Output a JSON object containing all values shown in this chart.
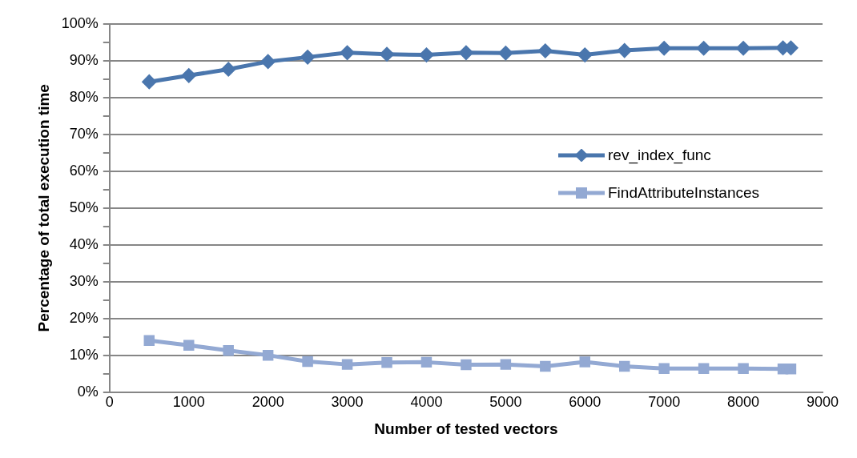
{
  "chart_data": {
    "type": "line",
    "xlabel": "Number of tested vectors",
    "ylabel": "Percentage of total execution time",
    "x": [
      500,
      1000,
      1500,
      2000,
      2500,
      3000,
      3500,
      4000,
      4500,
      5000,
      5500,
      6000,
      6500,
      7000,
      7500,
      8000,
      8500,
      8600
    ],
    "series": [
      {
        "name": "rev_index_func",
        "color": "#4a76ad",
        "marker": "diamond",
        "values": [
          84.3,
          86,
          87.7,
          89.8,
          91,
          92.2,
          91.8,
          91.6,
          92.2,
          92.1,
          92.7,
          91.6,
          92.8,
          93.4,
          93.4,
          93.4,
          93.5,
          93.5
        ]
      },
      {
        "name": "FindAttributeInstances",
        "color": "#93a9d3",
        "marker": "square",
        "values": [
          14,
          12.7,
          11.3,
          10,
          8.3,
          7.5,
          8,
          8.1,
          7.4,
          7.5,
          7,
          8.2,
          7,
          6.4,
          6.4,
          6.4,
          6.3,
          6.3
        ]
      }
    ],
    "xlim": [
      0,
      9000
    ],
    "xticks": [
      0,
      1000,
      2000,
      3000,
      4000,
      5000,
      6000,
      7000,
      8000,
      9000
    ],
    "ylim": [
      0,
      100
    ],
    "yticks": [
      {
        "value": 0,
        "label": "0%"
      },
      {
        "value": 5,
        "label": null
      },
      {
        "value": 10,
        "label": "10%"
      },
      {
        "value": 15,
        "label": null
      },
      {
        "value": 20,
        "label": "20%"
      },
      {
        "value": 25,
        "label": null
      },
      {
        "value": 30,
        "label": "30%"
      },
      {
        "value": 35,
        "label": null
      },
      {
        "value": 40,
        "label": "40%"
      },
      {
        "value": 45,
        "label": null
      },
      {
        "value": 50,
        "label": "50%"
      },
      {
        "value": 55,
        "label": null
      },
      {
        "value": 60,
        "label": "60%"
      },
      {
        "value": 65,
        "label": null
      },
      {
        "value": 70,
        "label": "70%"
      },
      {
        "value": 75,
        "label": null
      },
      {
        "value": 80,
        "label": "80%"
      },
      {
        "value": 85,
        "label": null
      },
      {
        "value": 90,
        "label": "90%"
      },
      {
        "value": 95,
        "label": null
      },
      {
        "value": 100,
        "label": "100%"
      }
    ],
    "grid": "y",
    "legend": "right",
    "line_style": "solid"
  }
}
